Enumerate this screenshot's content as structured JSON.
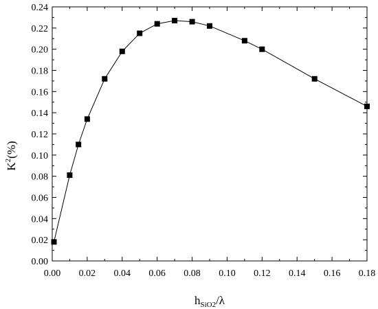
{
  "chart_data": {
    "type": "line",
    "title": "",
    "xlabel": {
      "main": "h",
      "sub": "SiO2",
      "suffix": "/λ"
    },
    "ylabel": {
      "main": "K",
      "sup": "2",
      "suffix": "(%)"
    },
    "xlim": [
      0.0,
      0.18
    ],
    "ylim": [
      0.0,
      0.24
    ],
    "x_ticks": [
      "0.00",
      "0.02",
      "0.04",
      "0.06",
      "0.08",
      "0.10",
      "0.12",
      "0.14",
      "0.16",
      "0.18"
    ],
    "y_ticks": [
      "0.00",
      "0.02",
      "0.04",
      "0.06",
      "0.08",
      "0.10",
      "0.12",
      "0.14",
      "0.16",
      "0.18",
      "0.20",
      "0.22",
      "0.24"
    ],
    "x_tick_values": [
      0.0,
      0.02,
      0.04,
      0.06,
      0.08,
      0.1,
      0.12,
      0.14,
      0.16,
      0.18
    ],
    "y_tick_values": [
      0.0,
      0.02,
      0.04,
      0.06,
      0.08,
      0.1,
      0.12,
      0.14,
      0.16,
      0.18,
      0.2,
      0.22,
      0.24
    ],
    "grid": false,
    "series": [
      {
        "marker": "square",
        "color": "#000000",
        "x": [
          0.001,
          0.01,
          0.015,
          0.02,
          0.03,
          0.04,
          0.05,
          0.06,
          0.07,
          0.08,
          0.09,
          0.11,
          0.12,
          0.15,
          0.18
        ],
        "y": [
          0.018,
          0.081,
          0.11,
          0.134,
          0.172,
          0.198,
          0.215,
          0.224,
          0.227,
          0.226,
          0.222,
          0.208,
          0.2,
          0.172,
          0.146
        ]
      }
    ]
  }
}
